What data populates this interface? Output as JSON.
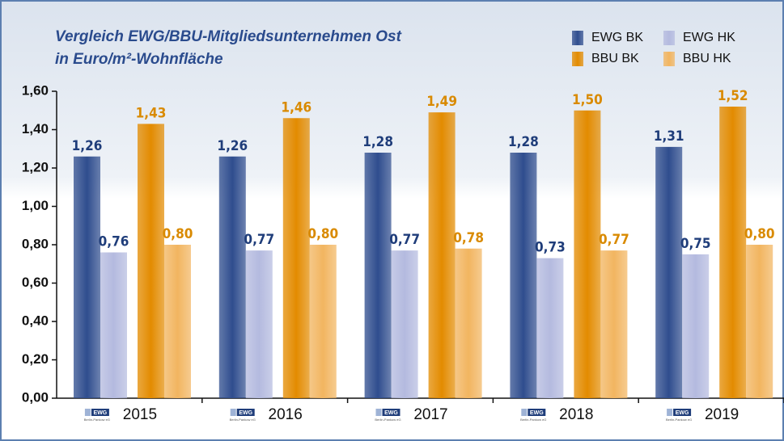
{
  "chart_data": {
    "type": "bar",
    "title": "Vergleich EWG/BBU-Mitgliedsunternehmen Ost",
    "subtitle": "in Euro/m²-Wohnfläche",
    "categories": [
      "2015",
      "2016",
      "2017",
      "2018",
      "2019"
    ],
    "series": [
      {
        "name": "EWG BK",
        "color": "#2f4d8e",
        "values": [
          1.26,
          1.26,
          1.28,
          1.28,
          1.31
        ],
        "value_labels": [
          "1,26",
          "1,26",
          "1,28",
          "1,28",
          "1,31"
        ]
      },
      {
        "name": "EWG HK",
        "color": "#b4badf",
        "values": [
          0.76,
          0.77,
          0.77,
          0.73,
          0.75
        ],
        "value_labels": [
          "0,76",
          "0,77",
          "0,77",
          "0,73",
          "0,75"
        ]
      },
      {
        "name": "BBU BK",
        "color": "#e38b00",
        "values": [
          1.43,
          1.46,
          1.49,
          1.5,
          1.52
        ],
        "value_labels": [
          "1,43",
          "1,46",
          "1,49",
          "1,50",
          "1,52"
        ]
      },
      {
        "name": "BBU HK",
        "color": "#f2b560",
        "values": [
          0.8,
          0.8,
          0.78,
          0.77,
          0.8
        ],
        "value_labels": [
          "0,80",
          "0,80",
          "0,78",
          "0,77",
          "0,80"
        ]
      }
    ],
    "ylim": [
      0,
      1.6
    ],
    "yticks": [
      {
        "value": 0,
        "label": "0,00"
      },
      {
        "value": 0.2,
        "label": "0,20"
      },
      {
        "value": 0.4,
        "label": "0,40"
      },
      {
        "value": 0.6,
        "label": "0,60"
      },
      {
        "value": 0.8,
        "label": "0,80"
      },
      {
        "value": 1.0,
        "label": "1,00"
      },
      {
        "value": 1.2,
        "label": "1,20"
      },
      {
        "value": 1.4,
        "label": "1,40"
      },
      {
        "value": 1.6,
        "label": "1,60"
      }
    ],
    "legend": "top-right"
  },
  "logo": {
    "name": "EWG",
    "sub": "Berlin-Pankow eG"
  }
}
